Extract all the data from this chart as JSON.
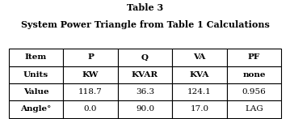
{
  "title_line1": "Table 3",
  "title_line2": "System Power Triangle from Table 1 Calculations",
  "col_headers": [
    "Item",
    "P",
    "Q",
    "VA",
    "PF"
  ],
  "rows": [
    [
      "Units",
      "KW",
      "KVAR",
      "KVA",
      "none"
    ],
    [
      "Value",
      "118.7",
      "36.3",
      "124.1",
      "0.956"
    ],
    [
      "Angle°",
      "0.0",
      "90.0",
      "17.0",
      "LAG"
    ]
  ],
  "bg_color": "#ffffff",
  "border_color": "#000000",
  "text_color": "#000000",
  "figsize": [
    3.59,
    1.47
  ],
  "dpi": 100,
  "title_fontsize": 8.0,
  "table_fontsize": 7.5
}
